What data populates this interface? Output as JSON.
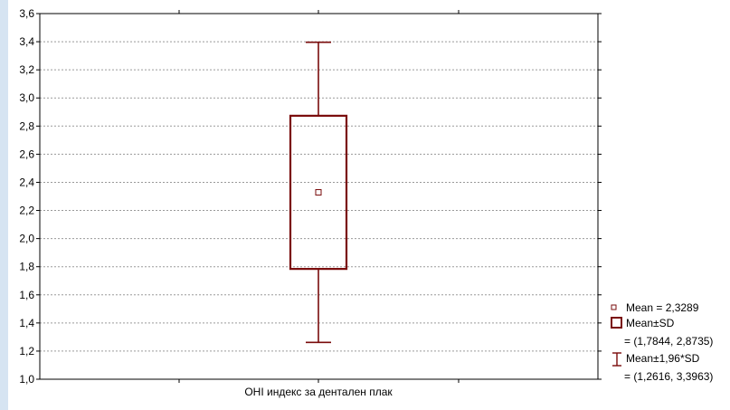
{
  "chart_data": {
    "type": "box",
    "xlabel": "ОНІ индекс за дентален плак",
    "ylim": [
      1.0,
      3.6
    ],
    "yticks": [
      "1,0",
      "1,2",
      "1,4",
      "1,6",
      "1,8",
      "2,0",
      "2,2",
      "2,4",
      "2,6",
      "2,8",
      "3,0",
      "3,2",
      "3,4",
      "3,6"
    ],
    "ytick_values": [
      1.0,
      1.2,
      1.4,
      1.6,
      1.8,
      2.0,
      2.2,
      2.4,
      2.6,
      2.8,
      3.0,
      3.2,
      3.4,
      3.6
    ],
    "grid": true,
    "mean": 2.3289,
    "sd_low": 1.7844,
    "sd_high": 2.8735,
    "ci_low": 1.2616,
    "ci_high": 3.3963,
    "legend": {
      "placement": "bottom-right",
      "mean_label": "Mean = 2,3289",
      "sd_label": "Mean±SD",
      "sd_range": "= (1,7844, 2,8735)",
      "ci_label": "Mean±1,96*SD",
      "ci_range": "= (1,2616, 3,3963)"
    },
    "colors": {
      "box": "#7a0c0c",
      "grid": "#9a9a9a",
      "frame": "#000000",
      "left_band": "#d6e4f2"
    }
  }
}
